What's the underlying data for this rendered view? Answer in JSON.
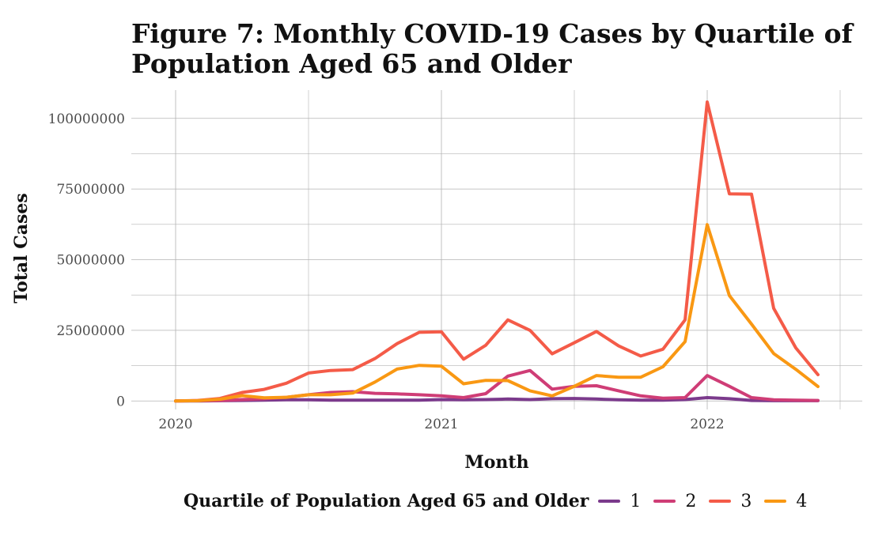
{
  "colors": {
    "grid": "#b3b3b3",
    "tick_text": "#4d4d4d"
  },
  "chart_data": {
    "type": "line",
    "title": "Figure 7: Monthly COVID-19 Cases by Quartile of Population Aged 65 and Older",
    "title_lines": [
      "Figure 7: Monthly COVID-19 Cases by Quartile of",
      "Population Aged 65 and Older"
    ],
    "xlabel": "Month",
    "ylabel": "Total Cases",
    "x": [
      "2020-01",
      "2020-02",
      "2020-03",
      "2020-04",
      "2020-05",
      "2020-06",
      "2020-07",
      "2020-08",
      "2020-09",
      "2020-10",
      "2020-11",
      "2020-12",
      "2021-01",
      "2021-02",
      "2021-03",
      "2021-04",
      "2021-05",
      "2021-06",
      "2021-07",
      "2021-08",
      "2021-09",
      "2021-10",
      "2021-11",
      "2021-12",
      "2022-01",
      "2022-02",
      "2022-03",
      "2022-04",
      "2022-05",
      "2022-06"
    ],
    "xticks": [
      {
        "value": "2020-01",
        "label": "2020"
      },
      {
        "value": "2021-01",
        "label": "2021"
      },
      {
        "value": "2022-01",
        "label": "2022"
      }
    ],
    "x_range": [
      "2019-11",
      "2022-08"
    ],
    "yticks": [
      {
        "value": 0,
        "label": "0"
      },
      {
        "value": 25000000,
        "label": "25000000"
      },
      {
        "value": 50000000,
        "label": "50000000"
      },
      {
        "value": 75000000,
        "label": "75000000"
      },
      {
        "value": 100000000,
        "label": "100000000"
      }
    ],
    "ylim": [
      -3000000,
      110000000
    ],
    "grid": true,
    "legend": {
      "title": "Quartile of Population Aged 65 and Older",
      "position": "bottom"
    },
    "series": [
      {
        "name": "1",
        "color": "#7b3a8c",
        "values": [
          0,
          0,
          100000,
          200000,
          300000,
          400000,
          400000,
          300000,
          300000,
          300000,
          300000,
          300000,
          500000,
          400000,
          500000,
          700000,
          500000,
          800000,
          900000,
          700000,
          400000,
          300000,
          300000,
          500000,
          1200000,
          800000,
          200000,
          100000,
          100000,
          100000
        ]
      },
      {
        "name": "2",
        "color": "#cf3d76",
        "values": [
          0,
          100000,
          200000,
          500000,
          800000,
          1300000,
          2200000,
          3000000,
          3300000,
          2700000,
          2500000,
          2200000,
          1800000,
          1200000,
          2600000,
          8800000,
          10800000,
          4200000,
          5200000,
          5400000,
          3600000,
          1800000,
          1000000,
          1200000,
          9000000,
          5200000,
          1200000,
          400000,
          300000,
          200000
        ]
      },
      {
        "name": "3",
        "color": "#f45b48",
        "values": [
          0,
          200000,
          900000,
          3000000,
          4100000,
          6300000,
          9900000,
          10800000,
          11100000,
          15000000,
          20300000,
          24300000,
          24500000,
          14800000,
          19700000,
          28700000,
          25000000,
          16700000,
          20600000,
          24600000,
          19500000,
          15900000,
          18300000,
          28700000,
          105800000,
          73300000,
          73200000,
          32800000,
          18800000,
          9300000
        ]
      },
      {
        "name": "4",
        "color": "#f99813",
        "values": [
          0,
          100000,
          600000,
          1900000,
          1100000,
          1300000,
          2200000,
          2200000,
          2800000,
          6700000,
          11300000,
          12600000,
          12300000,
          6100000,
          7300000,
          7200000,
          3600000,
          1800000,
          5200000,
          9000000,
          8400000,
          8400000,
          12100000,
          21000000,
          62400000,
          37300000,
          27200000,
          16800000,
          11200000,
          5100000
        ]
      }
    ]
  }
}
